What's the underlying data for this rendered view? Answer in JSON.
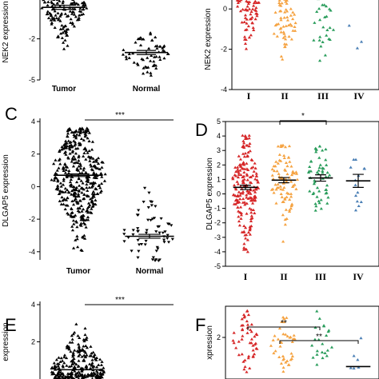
{
  "chart_data": [
    {
      "panel": "",
      "type": "scatter",
      "ylabel": "NEK2 expression",
      "categories": [
        "Tumor",
        "Normal"
      ],
      "yticks": [
        "-5",
        "-2"
      ],
      "ylim": [
        -5,
        2
      ],
      "series": [
        {
          "color": "#000000",
          "marker": "triangle",
          "mean": [
            0.3,
            -3.0
          ],
          "center": [
            0.5,
            -3.0
          ],
          "spread": [
            [
              -3,
              2
            ],
            [
              -4.8,
              -1.5
            ]
          ],
          "n": [
            180,
            60
          ]
        }
      ]
    },
    {
      "panel": "",
      "type": "scatter",
      "ylabel": "NEK2 expression",
      "categories": [
        "I",
        "II",
        "III",
        "IV"
      ],
      "yticks": [
        "-4",
        "-2",
        "0"
      ],
      "ylim": [
        -4,
        1
      ],
      "series": [
        {
          "color": "#d62728",
          "mean": [
            0.7
          ],
          "spread": [
            [
              -3.9,
              1
            ]
          ],
          "n": [
            120
          ]
        },
        {
          "color": "#f5a342",
          "spread": [
            [
              -2.5,
              1
            ]
          ],
          "n": [
            60
          ]
        },
        {
          "color": "#2a9d5c",
          "spread": [
            [
              -3.0,
              1
            ]
          ],
          "n": [
            30
          ]
        },
        {
          "color": "#4a7fb5",
          "spread": [
            [
              -2.0,
              0.2
            ]
          ],
          "n": [
            3
          ]
        }
      ]
    },
    {
      "panel": "C",
      "type": "scatter",
      "ylabel": "DLGAP5 expression",
      "categories": [
        "Tumor",
        "Normal"
      ],
      "yticks": [
        "-4",
        "-2",
        "0",
        "2",
        "4"
      ],
      "ylim": [
        -4.5,
        4
      ],
      "significance": "***",
      "groups": [
        {
          "mean": 0.7,
          "sem": 0.08,
          "min": -4.0,
          "max": 3.6,
          "n": 420,
          "color": "#000000",
          "marker": "triangle"
        },
        {
          "mean": -3.05,
          "sem": 0.12,
          "min": -4.6,
          "max": 0.0,
          "n": 60,
          "color": "#000000",
          "marker": "triangle-down"
        }
      ]
    },
    {
      "panel": "D",
      "type": "scatter",
      "ylabel": "DLGAP5 expression",
      "categories": [
        "I",
        "II",
        "III",
        "IV"
      ],
      "yticks": [
        "-5",
        "-4",
        "-3",
        "-2",
        "-1",
        "0",
        "1",
        "2",
        "3",
        "4",
        "5"
      ],
      "ylim": [
        -5,
        5
      ],
      "significance": "*",
      "significance_between": [
        "II",
        "IV"
      ],
      "groups": [
        {
          "mean": 0.45,
          "sem": 0.15,
          "min": -4.0,
          "max": 4.1,
          "n": 200,
          "color": "#d62728"
        },
        {
          "mean": 0.95,
          "sem": 0.18,
          "min": -3.3,
          "max": 3.5,
          "n": 90,
          "color": "#f5a342"
        },
        {
          "mean": 1.1,
          "sem": 0.22,
          "min": -2.6,
          "max": 3.3,
          "n": 55,
          "color": "#2a9d5c"
        },
        {
          "mean": 0.9,
          "sem": 0.45,
          "min": -2.2,
          "max": 2.6,
          "n": 14,
          "color": "#4a7fb5"
        }
      ]
    },
    {
      "panel": "E",
      "type": "scatter",
      "ylabel": "expression",
      "categories": [],
      "yticks": [
        "2",
        "4"
      ],
      "ylim": [
        0,
        4
      ],
      "significance": "***",
      "groups": [
        {
          "mean": 0.5,
          "min": 0.0,
          "max": 3.9,
          "n": 260,
          "color": "#000000",
          "marker": "triangle"
        }
      ]
    },
    {
      "panel": "F",
      "type": "scatter",
      "ylabel": "xpression",
      "categories": [],
      "yticks": [
        "2"
      ],
      "ylim": [
        0,
        3.5
      ],
      "significance": "**",
      "groups": [
        {
          "min": 0.3,
          "max": 3.4,
          "n": 50,
          "color": "#d62728"
        },
        {
          "min": 0.3,
          "max": 3.0,
          "n": 40,
          "color": "#f5a342"
        },
        {
          "min": 0.3,
          "max": 3.3,
          "n": 22,
          "color": "#2a9d5c"
        },
        {
          "mean": 0.6,
          "min": 0.3,
          "max": 2.9,
          "n": 6,
          "color": "#4a7fb5"
        }
      ]
    }
  ]
}
